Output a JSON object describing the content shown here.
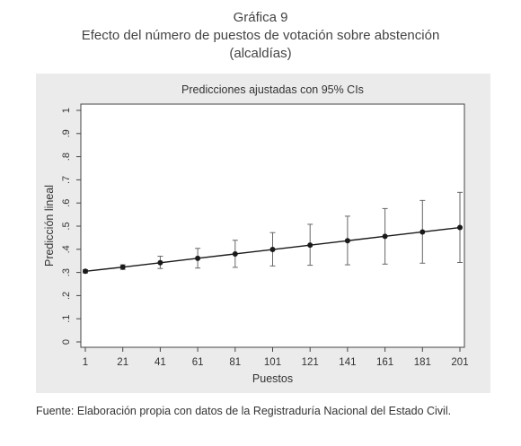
{
  "figure_label": "Gráfica 9",
  "figure_title_line1": "Efecto del número de puestos de votación sobre abstención",
  "figure_title_line2": "(alcaldías)",
  "source": "Fuente: Elaboración propia con datos de la Registraduría Nacional del Estado Civil.",
  "chart_data": {
    "type": "line",
    "title": "Predicciones ajustadas con 95% CIs",
    "xlabel": "Puestos",
    "ylabel": "Predicción lineal",
    "x": [
      1,
      21,
      41,
      61,
      81,
      101,
      121,
      141,
      161,
      181,
      201
    ],
    "x_tick_labels": [
      "1",
      "21",
      "41",
      "61",
      "81",
      "101",
      "121",
      "141",
      "161",
      "181",
      "201"
    ],
    "y_ticks": [
      0,
      0.1,
      0.2,
      0.3,
      0.4,
      0.5,
      0.6,
      0.7,
      0.8,
      0.9,
      1
    ],
    "y_tick_labels": [
      "0",
      ".1",
      ".2",
      ".3",
      ".4",
      ".5",
      ".6",
      ".7",
      ".8",
      ".9",
      "1"
    ],
    "ylim": [
      0,
      1
    ],
    "xlim": [
      1,
      201
    ],
    "series": [
      {
        "values": [
          0.305,
          0.323,
          0.342,
          0.361,
          0.38,
          0.399,
          0.418,
          0.437,
          0.456,
          0.475,
          0.494
        ],
        "ci_lower": [
          0.298,
          0.313,
          0.317,
          0.319,
          0.322,
          0.328,
          0.331,
          0.333,
          0.336,
          0.34,
          0.343
        ],
        "ci_upper": [
          0.312,
          0.333,
          0.37,
          0.404,
          0.439,
          0.472,
          0.508,
          0.543,
          0.576,
          0.611,
          0.646
        ]
      }
    ],
    "colors": {
      "panel_bg": "#ebebeb",
      "plot_bg": "#ffffff",
      "line": "#1a1a1a"
    }
  }
}
